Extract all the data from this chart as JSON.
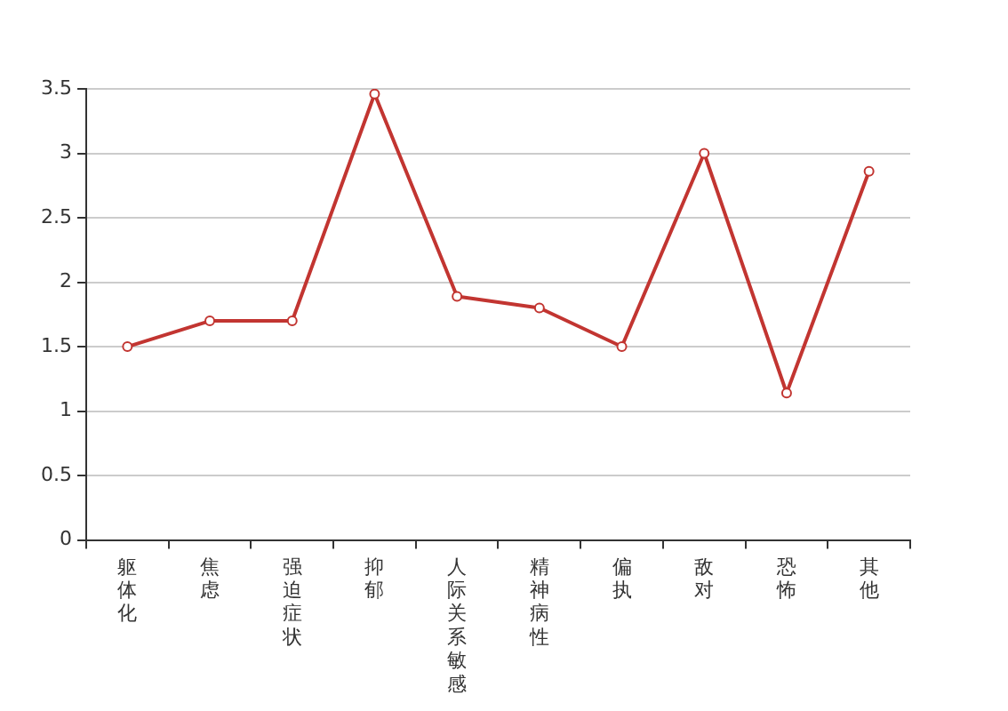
{
  "chart_data": {
    "type": "line",
    "categories": [
      "躯体化",
      "焦虑",
      "强迫症状",
      "抑郁",
      "人际关系敏感",
      "精神病性",
      "偏执",
      "敌对",
      "恐怖",
      "其他"
    ],
    "series": [
      {
        "color": "#c23531",
        "values": [
          1.5,
          1.7,
          1.7,
          3.46,
          1.89,
          1.8,
          1.5,
          3.0,
          1.14,
          2.86
        ]
      }
    ],
    "ylim": [
      0,
      3.5
    ],
    "yticks": [
      0,
      0.5,
      1,
      1.5,
      2,
      2.5,
      3,
      3.5
    ],
    "grid": "y",
    "legend": false,
    "marker": "circle",
    "line_style": "solid"
  }
}
